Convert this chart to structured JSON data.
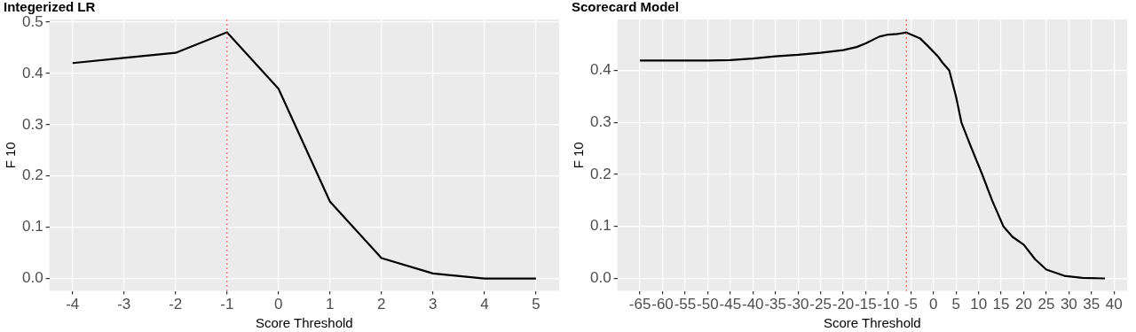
{
  "chart_data": [
    {
      "type": "line",
      "title": "Integerized LR",
      "xlabel": "Score Threshold",
      "ylabel": "F 10",
      "x": [
        -4,
        -3,
        -2,
        -1,
        0,
        1,
        2,
        3,
        4,
        5
      ],
      "series": [
        {
          "color": "#000000",
          "values": [
            0.42,
            0.43,
            0.44,
            0.48,
            0.37,
            0.15,
            0.04,
            0.01,
            0.0,
            0.0
          ]
        }
      ],
      "xlim": [
        -4.45,
        5.45
      ],
      "xticks": [
        -4,
        -3,
        -2,
        -1,
        0,
        1,
        2,
        3,
        4,
        5
      ],
      "ylim": [
        -0.024,
        0.505
      ],
      "yticks": [
        {
          "value": 0,
          "label": "0.0"
        },
        0.1,
        0.2,
        0.3,
        0.4,
        0.5
      ],
      "ref_lines": [
        {
          "axis": "x",
          "value": -1,
          "color": "#e8413c",
          "line_style": "dotted"
        }
      ],
      "grid": true,
      "legend": false,
      "marker": "none",
      "line_style": "solid"
    },
    {
      "type": "line",
      "title": "Scorecard Model",
      "xlabel": "Score Threshold",
      "ylabel": "F 10",
      "x": [
        -65,
        -50,
        -45,
        -40,
        -35,
        -30,
        -25,
        -20,
        -17,
        -15,
        -12,
        -10,
        -8,
        -6,
        -3,
        -1,
        1,
        2,
        3.5,
        5,
        6.2,
        8,
        10.8,
        13,
        15.5,
        17.5,
        20,
        22.5,
        25,
        29,
        33,
        38
      ],
      "series": [
        {
          "color": "#000000",
          "values": [
            0.419,
            0.419,
            0.42,
            0.423,
            0.427,
            0.43,
            0.434,
            0.439,
            0.445,
            0.452,
            0.465,
            0.469,
            0.47,
            0.473,
            0.462,
            0.445,
            0.427,
            0.415,
            0.4,
            0.35,
            0.3,
            0.26,
            0.2,
            0.15,
            0.1,
            0.08,
            0.065,
            0.037,
            0.017,
            0.005,
            0.001,
            0.0
          ]
        }
      ],
      "xlim": [
        -70,
        42.9
      ],
      "xticks": [
        -65,
        -60,
        -55,
        -50,
        -45,
        -40,
        -35,
        -30,
        -25,
        -20,
        -15,
        -10,
        -5,
        0,
        5,
        10,
        15,
        20,
        25,
        30,
        35,
        40
      ],
      "ylim": [
        -0.024,
        0.498
      ],
      "yticks": [
        {
          "value": 0,
          "label": "0.0"
        },
        0.1,
        0.2,
        0.3,
        0.4
      ],
      "ref_lines": [
        {
          "axis": "x",
          "value": -6,
          "color": "#e8413c",
          "line_style": "dotted"
        }
      ],
      "grid": true,
      "legend": false,
      "marker": "none",
      "line_style": "solid"
    }
  ]
}
